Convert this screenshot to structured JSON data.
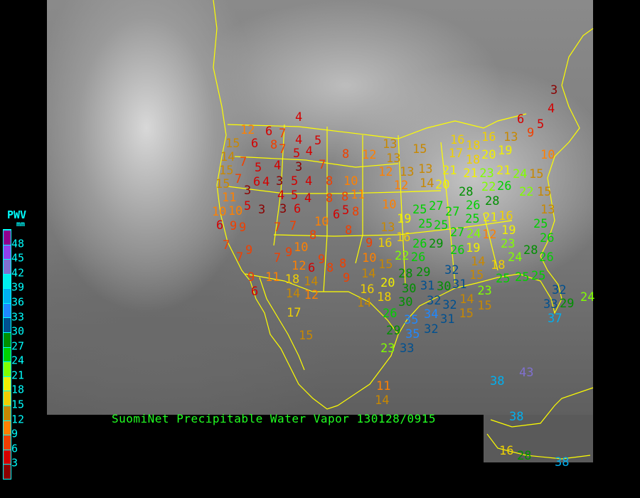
{
  "caption": "SuomiNet Precipitable Water Vapor 130128/0915",
  "legend": {
    "title": "PWV",
    "unit": "mm",
    "labels": [
      "3",
      "6",
      "9",
      "12",
      "15",
      "18",
      "21",
      "24",
      "27",
      "30",
      "33",
      "36",
      "39",
      "42",
      "45",
      "48"
    ],
    "colors": [
      "#8b0000",
      "#d40000",
      "#f04000",
      "#ff8000",
      "#c88800",
      "#f0d000",
      "#f0f000",
      "#80ff00",
      "#00d000",
      "#009000",
      "#005090",
      "#2088ff",
      "#00b0f0",
      "#00f0f0",
      "#8070d0",
      "#9040f0",
      "#900090"
    ]
  },
  "border_color": "#ffff00",
  "stations": [
    4,
    12,
    6,
    7,
    4,
    5,
    15,
    6,
    8,
    7,
    5,
    4,
    8,
    12,
    14,
    7,
    15,
    5,
    6,
    4,
    3,
    7,
    15,
    7,
    4,
    3,
    5,
    4,
    8,
    10,
    11,
    3,
    4,
    5,
    4,
    8,
    8,
    11,
    10,
    5,
    3,
    3,
    6,
    5,
    8,
    6,
    10,
    9,
    6,
    9,
    7,
    7,
    10,
    8,
    8,
    7,
    9,
    7,
    7,
    10,
    9,
    12,
    6,
    9,
    8,
    8,
    9,
    9,
    10,
    15,
    9,
    6,
    11,
    18,
    14,
    14,
    12,
    14,
    20,
    16,
    18,
    14,
    17,
    15,
    16,
    26,
    29,
    22,
    26,
    29,
    28,
    31,
    30,
    30,
    31,
    32,
    30,
    32,
    34,
    26,
    35,
    29,
    35,
    33,
    23,
    13,
    13,
    15,
    16,
    17,
    18,
    16,
    13,
    9,
    5,
    18,
    20,
    19,
    10,
    12,
    13,
    13,
    21,
    21,
    23,
    22,
    21,
    24,
    15,
    12,
    14,
    20,
    28,
    26,
    26,
    28,
    22,
    15,
    10,
    25,
    27,
    27,
    25,
    21,
    16,
    13,
    19,
    25,
    25,
    27,
    24,
    13,
    16,
    12,
    19,
    25,
    19,
    23,
    24,
    28,
    26,
    26,
    14,
    15,
    18,
    25,
    25,
    25,
    26,
    23,
    14,
    15,
    15,
    32,
    31,
    32,
    32,
    29,
    33,
    37,
    24,
    11,
    14,
    38,
    43,
    38,
    16,
    28,
    38,
    3,
    4,
    6
  ]
}
